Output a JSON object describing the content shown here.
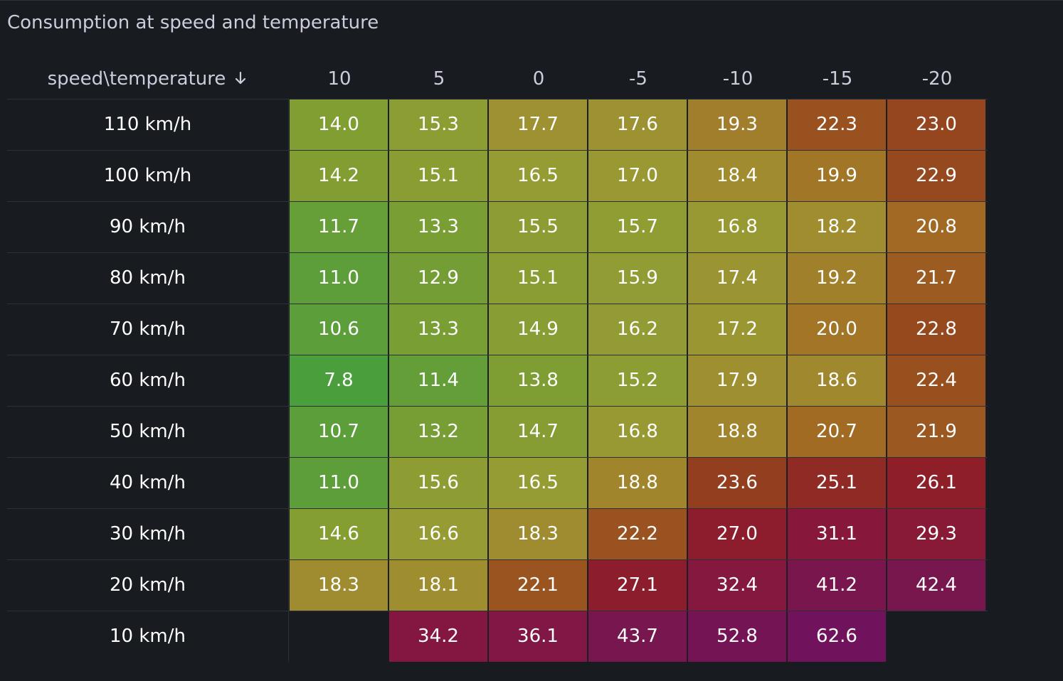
{
  "panel": {
    "title": "Consumption at speed and temperature",
    "header_label": "speed\\temperature",
    "sort_icon": "arrow-down-icon"
  },
  "temperatures": [
    "10",
    "5",
    "0",
    "-5",
    "-10",
    "-15",
    "-20"
  ],
  "rows": [
    {
      "speed": "110 km/h",
      "values": [
        "14.0",
        "15.3",
        "17.7",
        "17.6",
        "19.3",
        "22.3",
        "23.0"
      ]
    },
    {
      "speed": "100 km/h",
      "values": [
        "14.2",
        "15.1",
        "16.5",
        "17.0",
        "18.4",
        "19.9",
        "22.9"
      ]
    },
    {
      "speed": "90 km/h",
      "values": [
        "11.7",
        "13.3",
        "15.5",
        "15.7",
        "16.8",
        "18.2",
        "20.8"
      ]
    },
    {
      "speed": "80 km/h",
      "values": [
        "11.0",
        "12.9",
        "15.1",
        "15.9",
        "17.4",
        "19.2",
        "21.7"
      ]
    },
    {
      "speed": "70 km/h",
      "values": [
        "10.6",
        "13.3",
        "14.9",
        "16.2",
        "17.2",
        "20.0",
        "22.8"
      ]
    },
    {
      "speed": "60 km/h",
      "values": [
        "7.8",
        "11.4",
        "13.8",
        "15.2",
        "17.9",
        "18.6",
        "22.4"
      ]
    },
    {
      "speed": "50 km/h",
      "values": [
        "10.7",
        "13.2",
        "14.7",
        "16.8",
        "18.8",
        "20.7",
        "21.9"
      ]
    },
    {
      "speed": "40 km/h",
      "values": [
        "11.0",
        "15.6",
        "16.5",
        "18.8",
        "23.6",
        "25.1",
        "26.1"
      ]
    },
    {
      "speed": "30 km/h",
      "values": [
        "14.6",
        "16.6",
        "18.3",
        "22.2",
        "27.0",
        "31.1",
        "29.3"
      ]
    },
    {
      "speed": "20 km/h",
      "values": [
        "18.3",
        "18.1",
        "22.1",
        "27.1",
        "32.4",
        "41.2",
        "42.4"
      ]
    },
    {
      "speed": "10 km/h",
      "values": [
        "",
        "34.2",
        "36.1",
        "43.7",
        "52.8",
        "62.6",
        ""
      ]
    }
  ],
  "colors": {
    "background": "#181b1f",
    "text": "#ffffff",
    "header_text": "#ccccdc"
  }
}
